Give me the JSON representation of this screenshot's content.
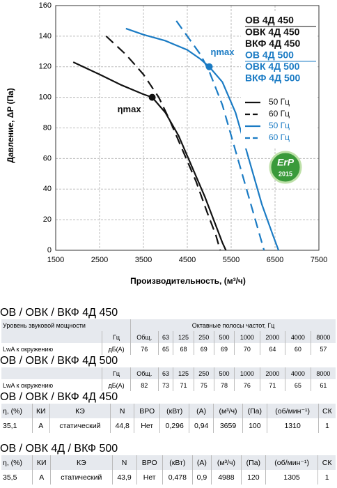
{
  "chart_data": {
    "type": "line",
    "y_label": "Давление, ΔP (Па)",
    "x_label": "Производительность, (м³/ч)",
    "xlim": [
      1500,
      7500
    ],
    "xticks": [
      1500,
      2500,
      3500,
      4500,
      5500,
      6500,
      7500
    ],
    "ylim": [
      0,
      160
    ],
    "yticks": [
      0,
      20,
      40,
      60,
      80,
      100,
      120,
      140,
      160
    ],
    "grid": true,
    "models": [
      {
        "name": "ОВ 4Д 450",
        "color": "#111111"
      },
      {
        "name": "ОВК 4Д 450",
        "color": "#111111"
      },
      {
        "name": "ВКФ 4Д 450",
        "color": "#111111"
      },
      {
        "name": "ОВ 4Д 500",
        "color": "#1a7bc4"
      },
      {
        "name": "ОВК 4Д 500",
        "color": "#1a7bc4"
      },
      {
        "name": "ВКФ 4Д 500",
        "color": "#1a7bc4"
      }
    ],
    "series": [
      {
        "name": "50 Гц",
        "color": "#111111",
        "dashed": false,
        "x": [
          1900,
          2500,
          3000,
          3500,
          3700,
          4000,
          4300,
          4600,
          4900,
          5100,
          5300,
          5380
        ],
        "values": [
          123,
          115,
          108,
          102,
          100,
          90,
          75,
          55,
          35,
          20,
          5,
          0
        ]
      },
      {
        "name": "60 Гц",
        "color": "#111111",
        "dashed": true,
        "x": [
          2650,
          3100,
          3500,
          3850,
          4100,
          4400,
          4700,
          4950,
          5150,
          5250
        ],
        "values": [
          140,
          128,
          115,
          100,
          85,
          65,
          45,
          25,
          10,
          0
        ]
      },
      {
        "name": "50 Гц",
        "color": "#1a7bc4",
        "dashed": false,
        "x": [
          3100,
          3500,
          4000,
          4500,
          4800,
          5000,
          5300,
          5600,
          5900,
          6200,
          6450,
          6580
        ],
        "values": [
          145,
          141,
          137,
          131,
          125,
          120,
          110,
          90,
          60,
          30,
          10,
          0
        ]
      },
      {
        "name": "60 Гц",
        "color": "#1a7bc4",
        "dashed": true,
        "x": [
          4250,
          4500,
          4800,
          5000,
          5300,
          5600,
          5900,
          6100,
          6250
        ],
        "values": [
          150,
          140,
          128,
          117,
          95,
          65,
          35,
          15,
          0
        ]
      }
    ],
    "annotations": [
      {
        "label": "ηmax",
        "x": 3700,
        "y": 100,
        "color": "#111111"
      },
      {
        "label": "ηmax",
        "x": 5000,
        "y": 120,
        "color": "#1a7bc4"
      }
    ],
    "badge": {
      "text": "ErP",
      "year": "2015"
    }
  },
  "tables": [
    {
      "title": "ОВ / ОВК / ВКФ 4Д 450",
      "rows": [
        [
          "Уровень звуковой мощности",
          "Октавные полосы частот, Гц"
        ],
        [
          "",
          "Гц",
          "Общ.",
          "63",
          "125",
          "250",
          "500",
          "1000",
          "2000",
          "4000",
          "8000"
        ],
        [
          "LwA к окружению",
          "дБ(А)",
          "76",
          "65",
          "68",
          "69",
          "69",
          "70",
          "64",
          "60",
          "57"
        ]
      ]
    },
    {
      "title": "ОВ / ОВК / ВКФ 4Д 500",
      "rows": [
        [
          "",
          "Гц",
          "Общ.",
          "63",
          "125",
          "250",
          "500",
          "1000",
          "2000",
          "4000",
          "8000"
        ],
        [
          "LwA к окружению",
          "дБ(А)",
          "82",
          "73",
          "71",
          "75",
          "78",
          "76",
          "71",
          "65",
          "61"
        ]
      ]
    },
    {
      "title": "ОВ / ОВК / ВКФ 4Д 450",
      "rows": [
        [
          "η, (%)",
          "КИ",
          "КЭ",
          "N",
          "ВРО",
          "(кВт)",
          "(А)",
          "(м³/ч)",
          "(Па)",
          "(об/мин⁻¹)",
          "СК"
        ],
        [
          "35,1",
          "A",
          "статический",
          "44,8",
          "Нет",
          "0,296",
          "0,94",
          "3659",
          "100",
          "1310",
          "1"
        ]
      ]
    },
    {
      "title": "ОВ / ОВК 4Д / ВКФ 500",
      "rows": [
        [
          "η, (%)",
          "КИ",
          "КЭ",
          "N",
          "ВРО",
          "(кВт)",
          "(А)",
          "(м³/ч)",
          "(Па)",
          "(об/мин⁻¹)",
          "СК"
        ],
        [
          "35,5",
          "A",
          "статический",
          "43,9",
          "Нет",
          "0,478",
          "0,9",
          "4988",
          "120",
          "1305",
          "1"
        ]
      ]
    }
  ]
}
